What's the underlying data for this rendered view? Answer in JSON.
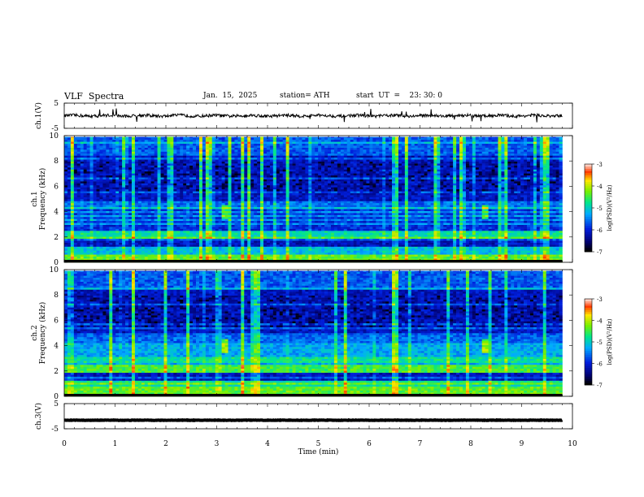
{
  "header": {
    "title": "VLF  Spectra",
    "date": "Jan.  15,  2025",
    "station": "station= ATH",
    "start_ut": "start  UT  =    23: 30: 0"
  },
  "chart_data": [
    {
      "type": "line",
      "panel": "ch1-waveform",
      "ylabel": "ch.1(V)",
      "ylim": [
        -5,
        5
      ],
      "yticks": [
        5,
        -5
      ],
      "xlim": [
        0,
        10
      ],
      "x_extent": [
        0,
        9.8
      ],
      "baseline": 0
    },
    {
      "type": "heatmap",
      "panel": "ch1-spectrogram",
      "ylabel": "ch.1\nFrequency  (kHz)",
      "ylim": [
        0,
        10
      ],
      "yticks": [
        0,
        2,
        4,
        6,
        8,
        10
      ],
      "xlim": [
        0,
        10
      ],
      "colorbar": {
        "label": "log(PSD)(V²/Hz)",
        "range": [
          -7,
          -3
        ],
        "ticks": [
          -3,
          -4,
          -5,
          -6,
          -7
        ]
      }
    },
    {
      "type": "heatmap",
      "panel": "ch2-spectrogram",
      "ylabel": "ch.2\nFrequency  (kHz)",
      "ylim": [
        0,
        10
      ],
      "yticks": [
        0,
        2,
        4,
        6,
        8,
        10
      ],
      "xlim": [
        0,
        10
      ],
      "colorbar": {
        "label": "log(PSD)(V²/Hz)",
        "range": [
          -7,
          -3
        ],
        "ticks": [
          -3,
          -4,
          -5,
          -6,
          -7
        ]
      }
    },
    {
      "type": "line",
      "panel": "ch3-waveform",
      "ylabel": "ch.3(V)",
      "ylim": [
        -5,
        5
      ],
      "yticks": [
        5,
        -5
      ],
      "xlim": [
        0,
        10
      ],
      "x_extent": [
        0,
        9.8
      ],
      "baseline": -1.6
    }
  ],
  "xaxis": {
    "label": "Time  (min)",
    "ticks": [
      0,
      1,
      2,
      3,
      4,
      5,
      6,
      7,
      8,
      9,
      10
    ]
  }
}
